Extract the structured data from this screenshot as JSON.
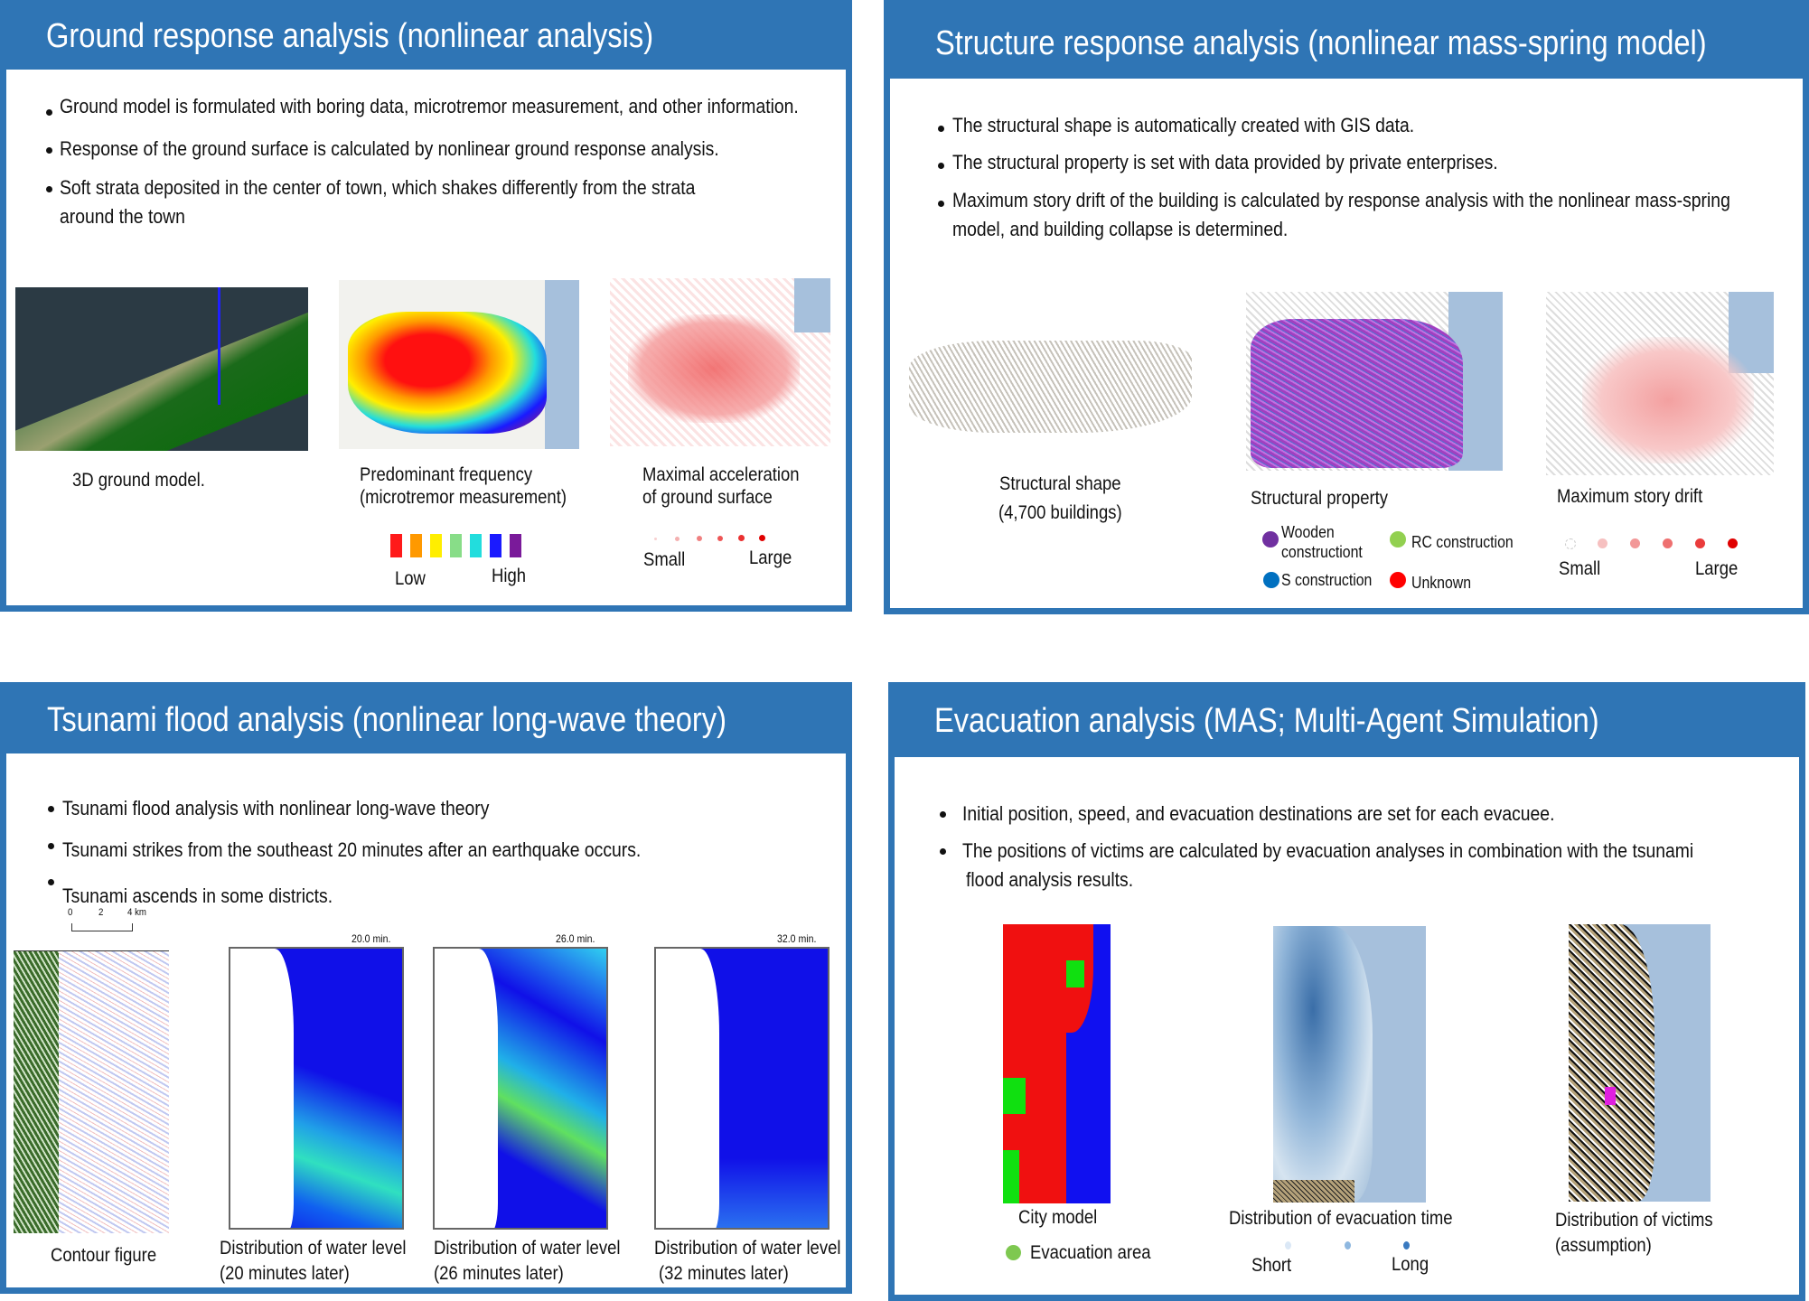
{
  "ground": {
    "title": "Ground response analysis (nonlinear analysis)",
    "bullets": [
      "Ground model is formulated with boring data, microtremor measurement, and other information.",
      "Response of the ground surface is calculated by nonlinear ground response analysis.",
      "Soft strata deposited in the center of town, which shakes differently from the strata",
      "around the town"
    ],
    "figures": {
      "model_label": "3D ground model.",
      "freq_label_1": "Predominant frequency",
      "freq_label_2": "(microtremor measurement)",
      "accel_label_1": "Maximal acceleration",
      "accel_label_2": "of ground surface"
    },
    "freq_legend": {
      "low": "Low",
      "high": "High",
      "colors": [
        "#ff1a1a",
        "#ff9900",
        "#ffee00",
        "#88dd88",
        "#22dddd",
        "#1a1aff",
        "#7a1a9a"
      ]
    },
    "accel_legend": {
      "small": "Small",
      "large": "Large"
    }
  },
  "structure": {
    "title": "Structure response analysis (nonlinear mass-spring model)",
    "bullets": [
      "The structural shape is automatically created with GIS data.",
      "The structural property is set with data provided by private enterprises.",
      "Maximum story drift of the building is calculated by response analysis with the nonlinear mass-spring",
      "model, and building collapse is determined."
    ],
    "figures": {
      "shape_label_1": "Structural shape",
      "shape_label_2": "(4,700 buildings)",
      "property_label": "Structural property",
      "drift_label": "Maximum story drift"
    },
    "property_legend": {
      "wooden_1": "Wooden",
      "wooden_2": "constructiont",
      "rc": "RC construction",
      "s": "S construction",
      "unknown": "Unknown",
      "colors": {
        "wooden": "#7030a0",
        "rc": "#92d050",
        "s": "#0070c0",
        "unknown": "#ff0000"
      }
    },
    "drift_legend": {
      "small": "Small",
      "large": "Large"
    }
  },
  "tsunami": {
    "title": "Tsunami flood analysis (nonlinear long-wave theory)",
    "bullets": [
      "Tsunami flood analysis with nonlinear long-wave theory",
      "Tsunami strikes from the southeast 20 minutes after an earthquake occurs.",
      "Tsunami ascends in some districts."
    ],
    "contour": {
      "label": "Contour figure",
      "scale": [
        "0",
        "2",
        "4 km"
      ]
    },
    "maps": [
      {
        "time": "20.0 min.",
        "label_1": "Distribution of water level",
        "label_2": "(20 minutes later)"
      },
      {
        "time": "26.0 min.",
        "label_1": "Distribution of water level",
        "label_2": "(26 minutes later)"
      },
      {
        "time": "32.0 min.",
        "label_1": "Distribution of water level",
        "label_2": "(32 minutes later)"
      }
    ]
  },
  "evacuation": {
    "title": "Evacuation analysis (MAS; Multi-Agent Simulation)",
    "bullets": [
      "Initial position, speed, and evacuation destinations are set for each evacuee.",
      "The positions of victims are calculated by evacuation analyses in combination with the tsunami",
      "flood analysis results."
    ],
    "city_label": "City model",
    "evac_area": "Evacuation area",
    "time_label": "Distribution of evacuation time",
    "time_legend": {
      "short": "Short",
      "long": "Long"
    },
    "victims_label_1": "Distribution of victims",
    "victims_label_2": "(assumption)"
  }
}
